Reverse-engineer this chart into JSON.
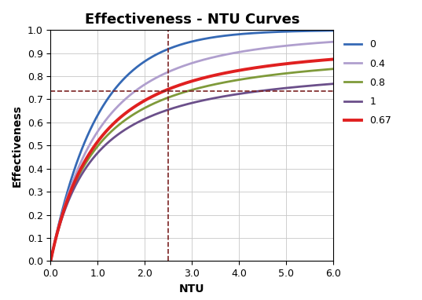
{
  "title": "Effectiveness - NTU Curves",
  "xlabel": "NTU",
  "ylabel": "Effectiveness",
  "xlim": [
    0,
    6.0
  ],
  "ylim": [
    0,
    1.0
  ],
  "xticks": [
    0.0,
    1.0,
    2.0,
    3.0,
    4.0,
    5.0,
    6.0
  ],
  "yticks": [
    0.0,
    0.1,
    0.2,
    0.3,
    0.4,
    0.5,
    0.6,
    0.7,
    0.8,
    0.9,
    1.0
  ],
  "curves": [
    {
      "Cr": 0,
      "color": "#3569b5",
      "lw": 2.0,
      "label": "0"
    },
    {
      "Cr": 0.4,
      "color": "#b09fce",
      "lw": 2.0,
      "label": "0.4"
    },
    {
      "Cr": 0.8,
      "color": "#7f9a3a",
      "lw": 2.0,
      "label": "0.8"
    },
    {
      "Cr": 1,
      "color": "#6b4f8a",
      "lw": 2.0,
      "label": "1"
    },
    {
      "Cr": 0.67,
      "color": "#e02020",
      "lw": 2.8,
      "label": "0.67"
    }
  ],
  "vline_x": 2.5,
  "hline_y": 0.735,
  "dashed_color": "#7b2222",
  "background_color": "#ffffff",
  "grid_color": "#c8c8c8",
  "title_fontsize": 13,
  "axis_label_fontsize": 10,
  "tick_fontsize": 9,
  "legend_fontsize": 9
}
